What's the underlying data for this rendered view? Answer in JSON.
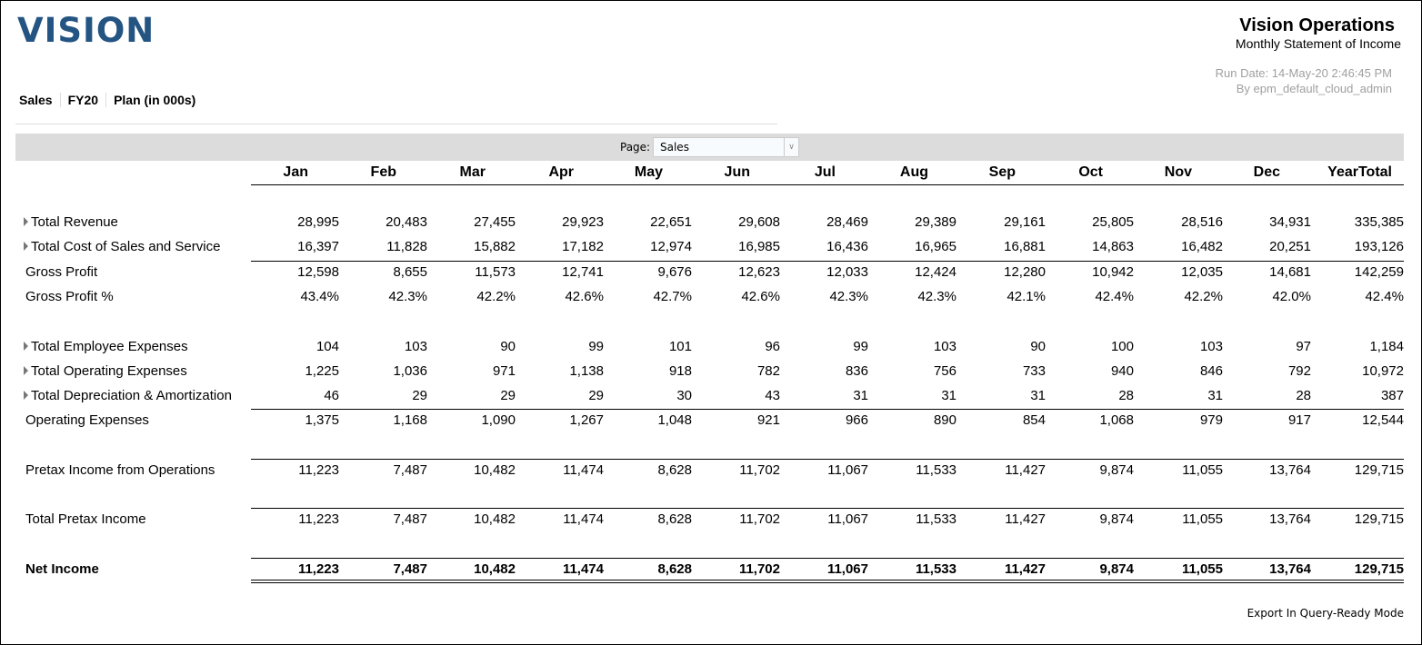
{
  "logo": "VISION",
  "header": {
    "title": "Vision Operations",
    "subtitle": "Monthly Statement of Income",
    "run_date": "Run Date: 14-May-20 2:46:45 PM",
    "run_by": "By epm_default_cloud_admin"
  },
  "pov": [
    "Sales",
    "FY20",
    "Plan (in 000s)"
  ],
  "page": {
    "label": "Page:",
    "value": "Sales"
  },
  "columns": [
    "Jan",
    "Feb",
    "Mar",
    "Apr",
    "May",
    "Jun",
    "Jul",
    "Aug",
    "Sep",
    "Oct",
    "Nov",
    "Dec",
    "YearTotal"
  ],
  "rows": [
    {
      "label": "Total Revenue",
      "expandable": true,
      "values": [
        "28,995",
        "20,483",
        "27,455",
        "29,923",
        "22,651",
        "29,608",
        "28,469",
        "29,389",
        "29,161",
        "25,805",
        "28,516",
        "34,931",
        "335,385"
      ]
    },
    {
      "label": "Total Cost of Sales and Service",
      "expandable": true,
      "values": [
        "16,397",
        "11,828",
        "15,882",
        "17,182",
        "12,974",
        "16,985",
        "16,436",
        "16,965",
        "16,881",
        "14,863",
        "16,482",
        "20,251",
        "193,126"
      ]
    },
    {
      "label": "Gross Profit",
      "expandable": false,
      "values": [
        "12,598",
        "8,655",
        "11,573",
        "12,741",
        "9,676",
        "12,623",
        "12,033",
        "12,424",
        "12,280",
        "10,942",
        "12,035",
        "14,681",
        "142,259"
      ]
    },
    {
      "label": "Gross Profit %",
      "expandable": false,
      "values": [
        "43.4%",
        "42.3%",
        "42.2%",
        "42.6%",
        "42.7%",
        "42.6%",
        "42.3%",
        "42.3%",
        "42.1%",
        "42.4%",
        "42.2%",
        "42.0%",
        "42.4%"
      ]
    },
    {
      "label": "Total Employee Expenses",
      "expandable": true,
      "values": [
        "104",
        "103",
        "90",
        "99",
        "101",
        "96",
        "99",
        "103",
        "90",
        "100",
        "103",
        "97",
        "1,184"
      ]
    },
    {
      "label": "Total Operating Expenses",
      "expandable": true,
      "values": [
        "1,225",
        "1,036",
        "971",
        "1,138",
        "918",
        "782",
        "836",
        "756",
        "733",
        "940",
        "846",
        "792",
        "10,972"
      ]
    },
    {
      "label": "Total Depreciation & Amortization",
      "expandable": true,
      "values": [
        "46",
        "29",
        "29",
        "29",
        "30",
        "43",
        "31",
        "31",
        "31",
        "28",
        "31",
        "28",
        "387"
      ]
    },
    {
      "label": "Operating Expenses",
      "expandable": false,
      "values": [
        "1,375",
        "1,168",
        "1,090",
        "1,267",
        "1,048",
        "921",
        "966",
        "890",
        "854",
        "1,068",
        "979",
        "917",
        "12,544"
      ]
    },
    {
      "label": "Pretax Income from Operations",
      "expandable": false,
      "values": [
        "11,223",
        "7,487",
        "10,482",
        "11,474",
        "8,628",
        "11,702",
        "11,067",
        "11,533",
        "11,427",
        "9,874",
        "11,055",
        "13,764",
        "129,715"
      ]
    },
    {
      "label": "Total Pretax Income",
      "expandable": false,
      "values": [
        "11,223",
        "7,487",
        "10,482",
        "11,474",
        "8,628",
        "11,702",
        "11,067",
        "11,533",
        "11,427",
        "9,874",
        "11,055",
        "13,764",
        "129,715"
      ]
    },
    {
      "label": "Net Income",
      "expandable": false,
      "bold": true,
      "values": [
        "11,223",
        "7,487",
        "10,482",
        "11,474",
        "8,628",
        "11,702",
        "11,067",
        "11,533",
        "11,427",
        "9,874",
        "11,055",
        "13,764",
        "129,715"
      ]
    }
  ],
  "export_label": "Export In Query-Ready Mode"
}
